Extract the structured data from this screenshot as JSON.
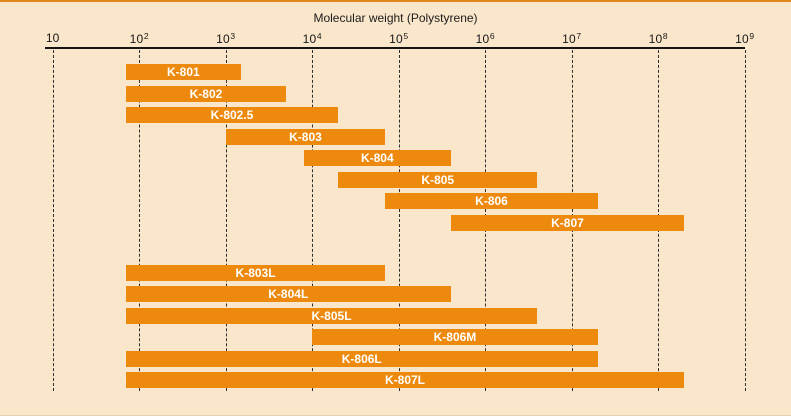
{
  "chart_data": {
    "type": "bar",
    "subtype": "horizontal-range-bars",
    "scale": "log10",
    "title": "Molecular weight (Polystyrene)",
    "xlabel": "Molecular weight (Polystyrene)",
    "ylabel": "",
    "grid": "vertical-dashed",
    "legend": "none",
    "x_axis": {
      "min": 10,
      "max": 1000000000,
      "ticks": [
        {
          "base": "10",
          "exp": ""
        },
        {
          "base": "10",
          "exp": "2"
        },
        {
          "base": "10",
          "exp": "3"
        },
        {
          "base": "10",
          "exp": "4"
        },
        {
          "base": "10",
          "exp": "5"
        },
        {
          "base": "10",
          "exp": "6"
        },
        {
          "base": "10",
          "exp": "7"
        },
        {
          "base": "10",
          "exp": "8"
        },
        {
          "base": "10",
          "exp": "9"
        }
      ]
    },
    "groups": [
      {
        "name": "upper-group",
        "bars": [
          {
            "label": "K-801",
            "range": [
              70,
              1500
            ]
          },
          {
            "label": "K-802",
            "range": [
              70,
              5000
            ]
          },
          {
            "label": "K-802.5",
            "range": [
              70,
              20000
            ]
          },
          {
            "label": "K-803",
            "range": [
              1000,
              70000
            ]
          },
          {
            "label": "K-804",
            "range": [
              8000,
              400000
            ]
          },
          {
            "label": "K-805",
            "range": [
              20000,
              4000000
            ]
          },
          {
            "label": "K-806",
            "range": [
              70000,
              20000000
            ]
          },
          {
            "label": "K-807",
            "range": [
              400000,
              200000000
            ]
          }
        ]
      },
      {
        "name": "lower-group",
        "bars": [
          {
            "label": "K-803L",
            "range": [
              70,
              70000
            ]
          },
          {
            "label": "K-804L",
            "range": [
              70,
              400000
            ]
          },
          {
            "label": "K-805L",
            "range": [
              70,
              4000000
            ]
          },
          {
            "label": "K-806M",
            "range": [
              10000,
              20000000
            ]
          },
          {
            "label": "K-806L",
            "range": [
              70,
              20000000
            ]
          },
          {
            "label": "K-807L",
            "range": [
              70,
              200000000
            ]
          }
        ]
      }
    ],
    "colors": {
      "bar": "#ED8A0E",
      "bar_label_text": "#FFFFFF",
      "background": "#FAE7CB",
      "axis": "#141414",
      "gridline": "#2E2E2E",
      "top_border": "#E0861A"
    }
  }
}
